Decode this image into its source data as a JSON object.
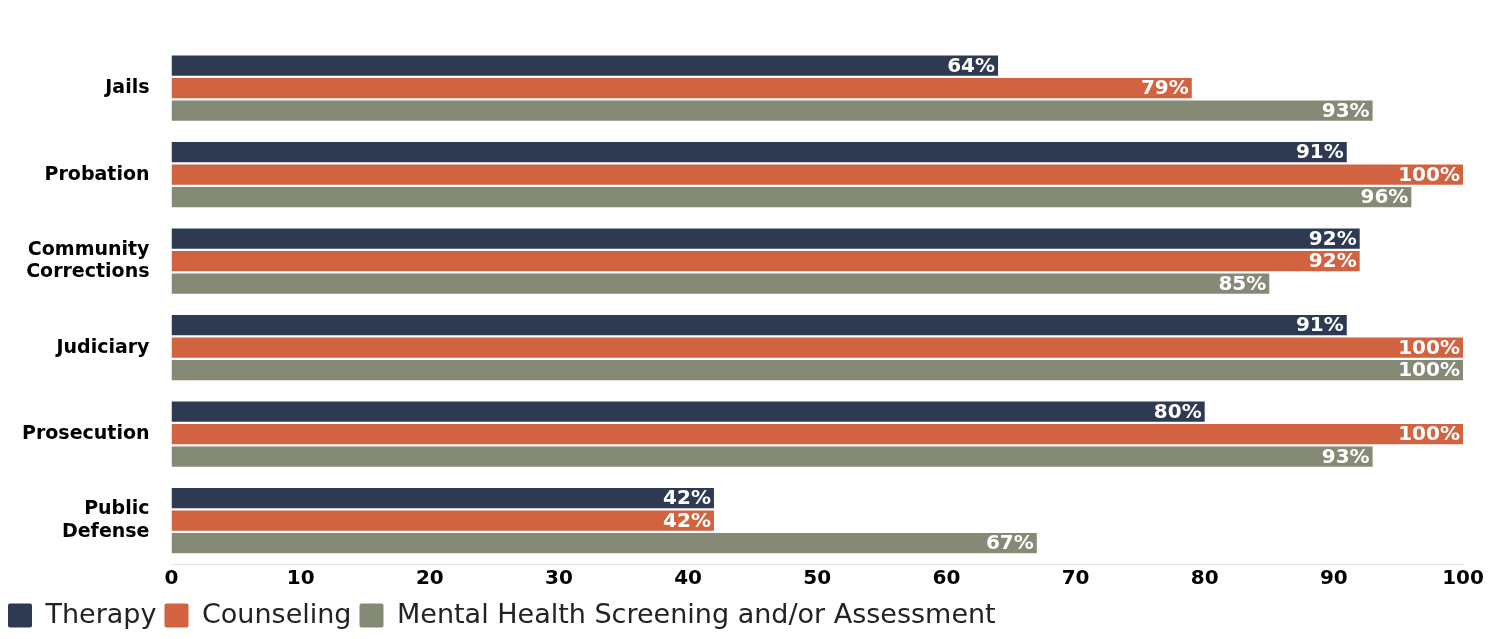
{
  "chart_data": {
    "type": "bar",
    "orientation": "horizontal",
    "categories": [
      "Jails",
      "Probation",
      "Community Corrections",
      "Judiciary",
      "Prosecution",
      "Public Defense"
    ],
    "series": [
      {
        "name": "Therapy",
        "color": "#2e3a52",
        "values": [
          64,
          91,
          92,
          91,
          80,
          42
        ],
        "value_labels": [
          "64%",
          "91%",
          "92%",
          "91%",
          "80%",
          "42%"
        ]
      },
      {
        "name": "Counseling",
        "color": "#d26341",
        "values": [
          79,
          100,
          92,
          100,
          100,
          42
        ],
        "value_labels": [
          "79%",
          "100%",
          "92%",
          "100%",
          "100%",
          "42%"
        ]
      },
      {
        "name": "Mental Health Screening and/or Assessment",
        "color": "#858a76",
        "values": [
          93,
          96,
          85,
          100,
          93,
          67
        ],
        "value_labels": [
          "93%",
          "96%",
          "85%",
          "100%",
          "93%",
          "67%"
        ]
      }
    ],
    "xlim": [
      0,
      100
    ],
    "xticks": [
      0,
      10,
      20,
      30,
      40,
      50,
      60,
      70,
      80,
      90,
      100
    ],
    "grid": false,
    "legend": "bottom left"
  }
}
